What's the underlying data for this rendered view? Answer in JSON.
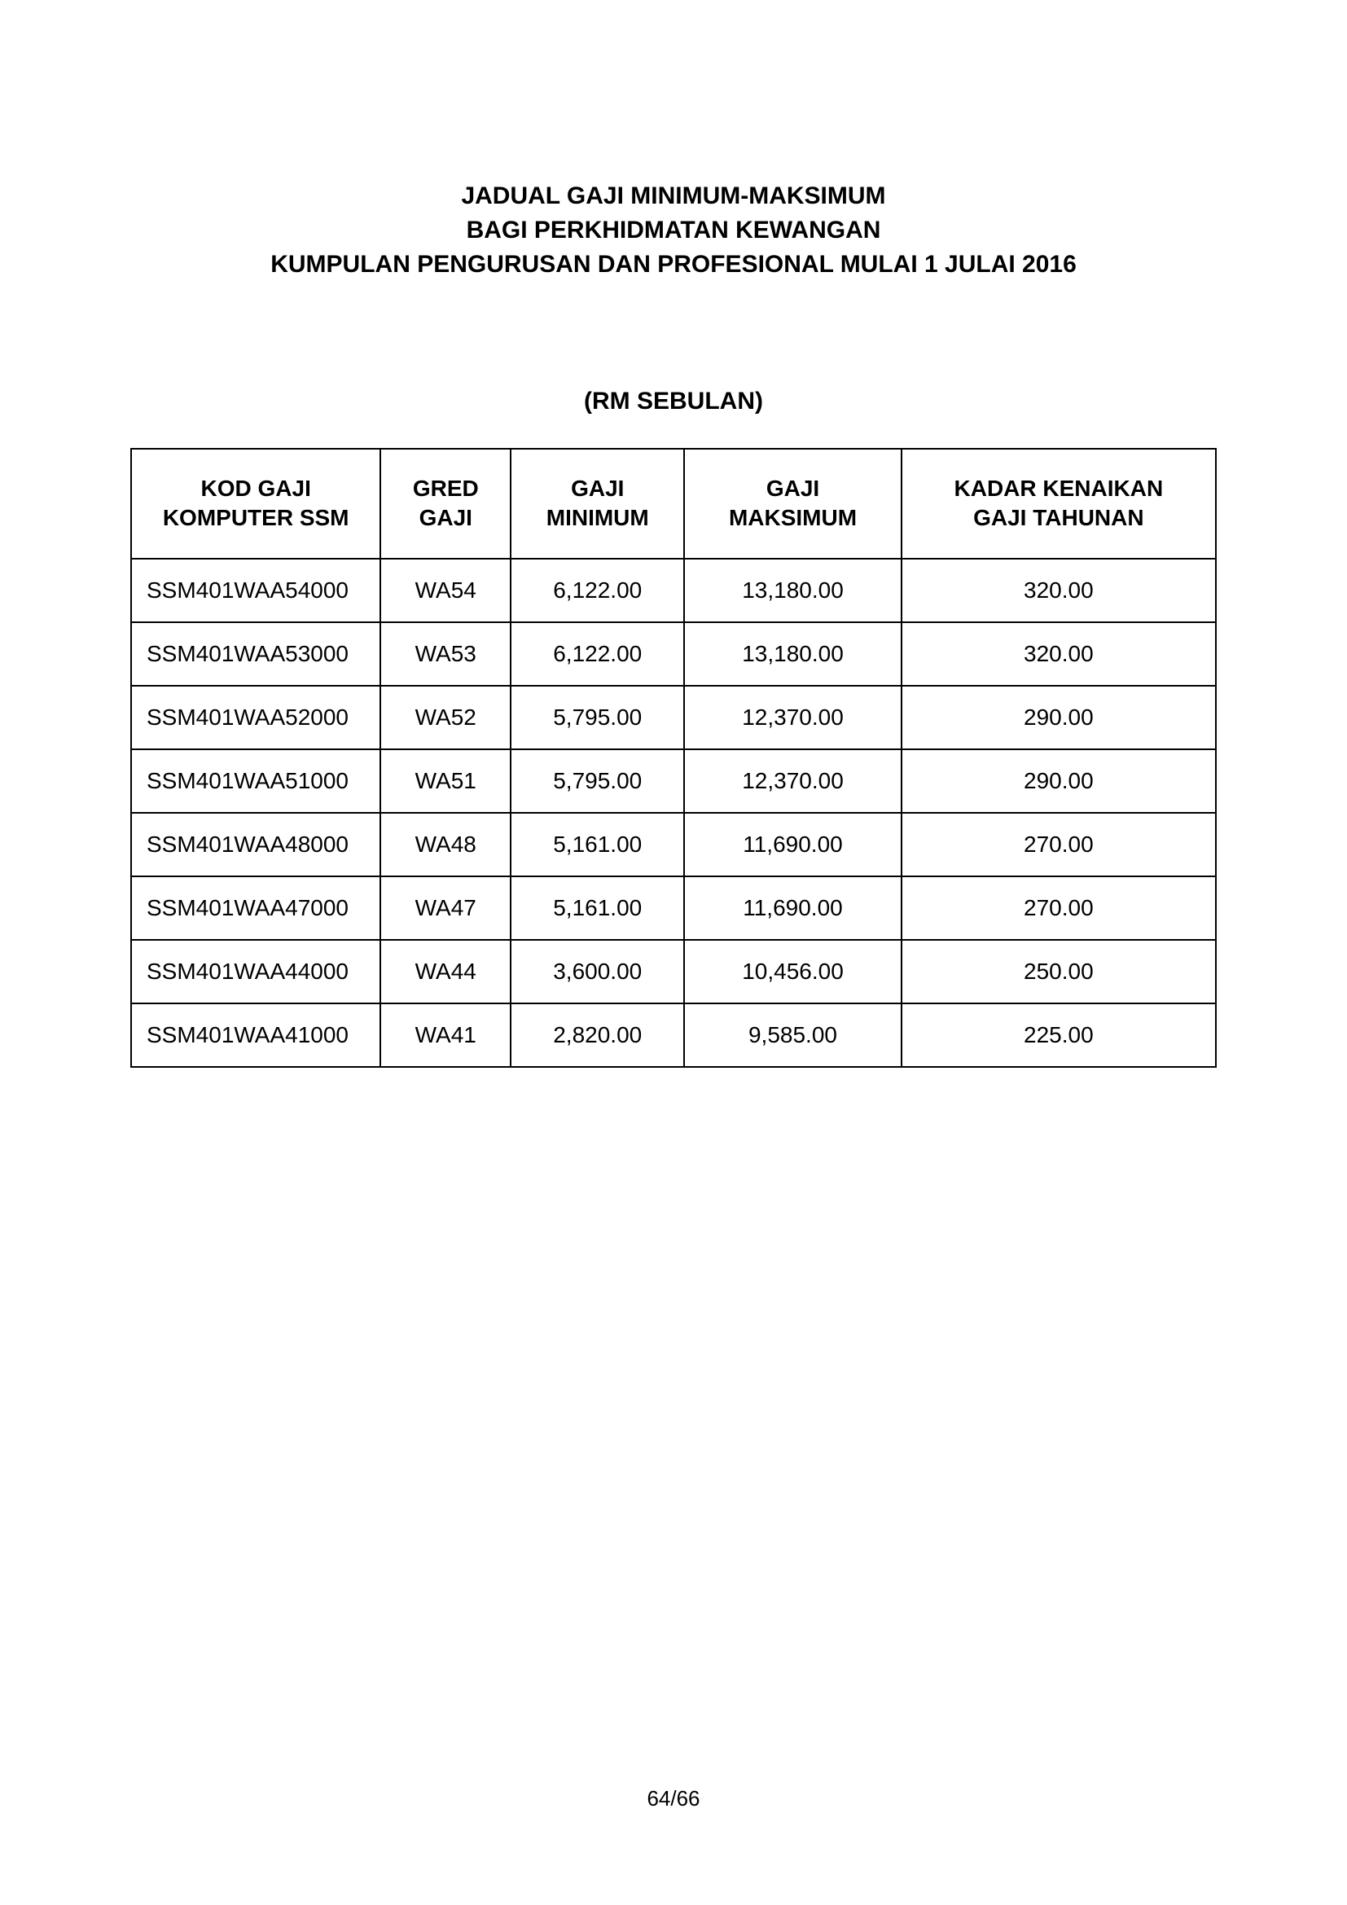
{
  "title": {
    "line1": "JADUAL GAJI MINIMUM-MAKSIMUM",
    "line2": "BAGI PERKHIDMATAN KEWANGAN",
    "line3": "KUMPULAN PENGURUSAN DAN PROFESIONAL MULAI 1 JULAI 2016"
  },
  "subtitle": "(RM SEBULAN)",
  "table": {
    "type": "table",
    "background_color": "#ffffff",
    "border_color": "#000000",
    "text_color": "#000000",
    "header_fontsize": 28,
    "cell_fontsize": 28,
    "font_family": "Arial",
    "columns": [
      {
        "key": "kod",
        "label_l1": "KOD GAJI",
        "label_l2": "KOMPUTER SSM",
        "align": "left",
        "width_pct": 23
      },
      {
        "key": "gred",
        "label_l1": "GRED",
        "label_l2": "GAJI",
        "align": "center",
        "width_pct": 12
      },
      {
        "key": "min",
        "label_l1": "GAJI",
        "label_l2": "MINIMUM",
        "align": "center",
        "width_pct": 16
      },
      {
        "key": "max",
        "label_l1": "GAJI",
        "label_l2": "MAKSIMUM",
        "align": "center",
        "width_pct": 20
      },
      {
        "key": "kadar",
        "label_l1": "KADAR KENAIKAN",
        "label_l2": "GAJI TAHUNAN",
        "align": "center",
        "width_pct": 29
      }
    ],
    "rows": [
      {
        "kod": "SSM401WAA54000",
        "gred": "WA54",
        "min": "6,122.00",
        "max": "13,180.00",
        "kadar": "320.00"
      },
      {
        "kod": "SSM401WAA53000",
        "gred": "WA53",
        "min": "6,122.00",
        "max": "13,180.00",
        "kadar": "320.00"
      },
      {
        "kod": "SSM401WAA52000",
        "gred": "WA52",
        "min": "5,795.00",
        "max": "12,370.00",
        "kadar": "290.00"
      },
      {
        "kod": "SSM401WAA51000",
        "gred": "WA51",
        "min": "5,795.00",
        "max": "12,370.00",
        "kadar": "290.00"
      },
      {
        "kod": "SSM401WAA48000",
        "gred": "WA48",
        "min": "5,161.00",
        "max": "11,690.00",
        "kadar": "270.00"
      },
      {
        "kod": "SSM401WAA47000",
        "gred": "WA47",
        "min": "5,161.00",
        "max": "11,690.00",
        "kadar": "270.00"
      },
      {
        "kod": "SSM401WAA44000",
        "gred": "WA44",
        "min": "3,600.00",
        "max": "10,456.00",
        "kadar": "250.00"
      },
      {
        "kod": "SSM401WAA41000",
        "gred": "WA41",
        "min": "2,820.00",
        "max": "9,585.00",
        "kadar": "225.00"
      }
    ]
  },
  "page_number": "64/66"
}
